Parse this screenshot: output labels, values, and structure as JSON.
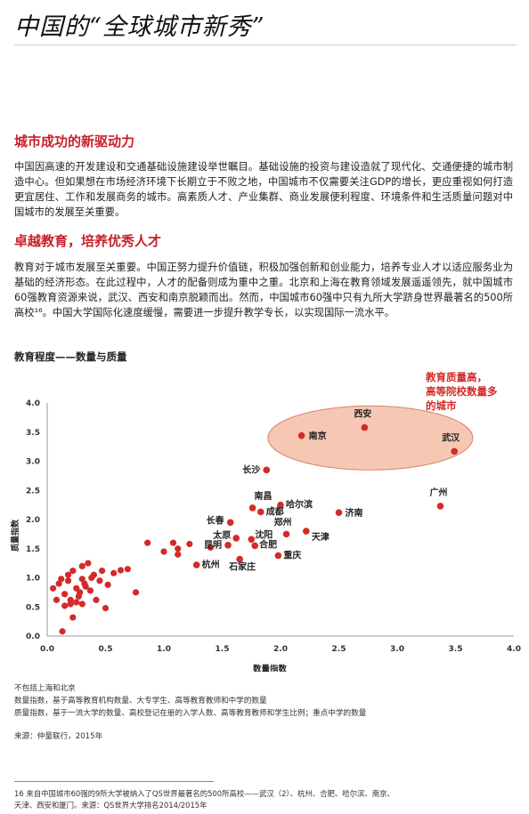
{
  "page": {
    "title": "中国的“全球城市新秀”",
    "section1_heading": "城市成功的新驱动力",
    "section1_body": "中国因高速的开发建设和交通基础设施建设举世瞩目。基础设施的投资与建设造就了现代化、交通便捷的城市制造中心。但如果想在市场经济环境下长期立于不败之地，中国城市不仅需要关注GDP的增长，更应重视如何打造更宜居住、工作和发展商务的城市。高素质人才、产业集群、商业发展便利程度、环境条件和生活质量问题对中国城市的发展至关重要。",
    "section2_heading": "卓越教育，培养优秀人才",
    "section2_body": "教育对于城市发展至关重要。中国正努力提升价值链，积极加强创新和创业能力，培养专业人才以适应服务业为基础的经济形态。在此过程中，人才的配备则成为重中之重。北京和上海在教育领域发展遥遥领先，就中国城市60强教育资源来说，武汉、西安和南京脱颖而出。然而，中国城市60强中只有九所大学跻身世界最著名的500所高校¹⁶。中国大学国际化速度缓慢，需要进一步提升教学专长，以实现国际一流水平。",
    "chart_title": "教育程度——数量与质量",
    "note1": "不包括上海和北京",
    "note2": "数量指数，基于高等教育机构数量、大专学生、高等教育教师和中学的数量",
    "note3": "质量指数，基于一流大学的数量、高校登记在册的入学人数、高等教育教师和学生比例；重点中学的数量",
    "source": "来源：仲量联行，2015年",
    "footnote_line1": "16 来自中国城市60强的9所大学被纳入了QS世界最著名的500所高校——武汉（2）、杭州、合肥、哈尔滨、南京、",
    "footnote_line2": "天津、西安和厦门。来源：QS世界大学排名2014/2015年"
  },
  "chart_data": {
    "type": "scatter",
    "xlabel": "数量指数",
    "ylabel": "质量指数",
    "xlim": [
      0.0,
      4.0
    ],
    "ylim": [
      0.0,
      4.0
    ],
    "xticks": [
      "0.0",
      "0.5",
      "1.0",
      "1.5",
      "2.0",
      "2.5",
      "3.0",
      "3.5",
      "4.0"
    ],
    "yticks": [
      "0.0",
      "0.5",
      "1.0",
      "1.5",
      "2.0",
      "2.5",
      "3.0",
      "3.5",
      "4.0"
    ],
    "grid": false,
    "annotation": "教育质量高，高等院校数量多的城市",
    "point_color": "#d42a2a",
    "highlight_color": "#f6c8b4",
    "highlight_stroke": "#d9826a",
    "labeled_points": [
      {
        "name": "西安",
        "x": 2.72,
        "y": 3.58
      },
      {
        "name": "南京",
        "x": 2.18,
        "y": 3.44
      },
      {
        "name": "武汉",
        "x": 3.49,
        "y": 3.17
      },
      {
        "name": "长沙",
        "x": 1.88,
        "y": 2.85
      },
      {
        "name": "广州",
        "x": 3.37,
        "y": 2.23
      },
      {
        "name": "南昌",
        "x": 1.76,
        "y": 2.2
      },
      {
        "name": "哈尔滨",
        "x": 2.0,
        "y": 2.25
      },
      {
        "name": "成都",
        "x": 1.83,
        "y": 2.13
      },
      {
        "name": "济南",
        "x": 2.5,
        "y": 2.12
      },
      {
        "name": "长春",
        "x": 1.57,
        "y": 1.95
      },
      {
        "name": "郑州",
        "x": 2.05,
        "y": 1.75
      },
      {
        "name": "天津",
        "x": 2.22,
        "y": 1.8
      },
      {
        "name": "太原",
        "x": 1.62,
        "y": 1.68
      },
      {
        "name": "沈阳",
        "x": 1.75,
        "y": 1.66
      },
      {
        "name": "昆明",
        "x": 1.55,
        "y": 1.56
      },
      {
        "name": "合肥",
        "x": 1.78,
        "y": 1.55
      },
      {
        "name": "重庆",
        "x": 1.98,
        "y": 1.38
      },
      {
        "name": "石家庄",
        "x": 1.65,
        "y": 1.32
      },
      {
        "name": "杭州",
        "x": 1.28,
        "y": 1.22
      }
    ],
    "points": [
      {
        "x": 0.05,
        "y": 0.82
      },
      {
        "x": 0.1,
        "y": 0.9
      },
      {
        "x": 0.12,
        "y": 0.98
      },
      {
        "x": 0.08,
        "y": 0.62
      },
      {
        "x": 0.15,
        "y": 0.72
      },
      {
        "x": 0.18,
        "y": 0.95
      },
      {
        "x": 0.2,
        "y": 0.55
      },
      {
        "x": 0.22,
        "y": 1.12
      },
      {
        "x": 0.25,
        "y": 0.82
      },
      {
        "x": 0.27,
        "y": 0.68
      },
      {
        "x": 0.3,
        "y": 1.2
      },
      {
        "x": 0.32,
        "y": 0.9
      },
      {
        "x": 0.35,
        "y": 1.25
      },
      {
        "x": 0.37,
        "y": 0.78
      },
      {
        "x": 0.4,
        "y": 1.05
      },
      {
        "x": 0.42,
        "y": 0.62
      },
      {
        "x": 0.45,
        "y": 0.95
      },
      {
        "x": 0.47,
        "y": 1.12
      },
      {
        "x": 0.5,
        "y": 0.48
      },
      {
        "x": 0.52,
        "y": 0.88
      },
      {
        "x": 0.15,
        "y": 0.52
      },
      {
        "x": 0.2,
        "y": 0.62
      },
      {
        "x": 0.28,
        "y": 0.75
      },
      {
        "x": 0.3,
        "y": 0.98
      },
      {
        "x": 0.33,
        "y": 0.85
      },
      {
        "x": 0.38,
        "y": 1.0
      },
      {
        "x": 0.18,
        "y": 1.05
      },
      {
        "x": 0.25,
        "y": 0.58
      },
      {
        "x": 0.13,
        "y": 0.08
      },
      {
        "x": 0.22,
        "y": 0.32
      },
      {
        "x": 0.3,
        "y": 0.55
      },
      {
        "x": 0.57,
        "y": 1.08
      },
      {
        "x": 0.63,
        "y": 1.13
      },
      {
        "x": 0.69,
        "y": 1.15
      },
      {
        "x": 0.76,
        "y": 0.75
      },
      {
        "x": 0.86,
        "y": 1.6
      },
      {
        "x": 1.0,
        "y": 1.45
      },
      {
        "x": 1.08,
        "y": 1.6
      },
      {
        "x": 1.12,
        "y": 1.5
      },
      {
        "x": 1.12,
        "y": 1.4
      },
      {
        "x": 1.22,
        "y": 1.58
      },
      {
        "x": 1.4,
        "y": 1.52
      }
    ]
  }
}
